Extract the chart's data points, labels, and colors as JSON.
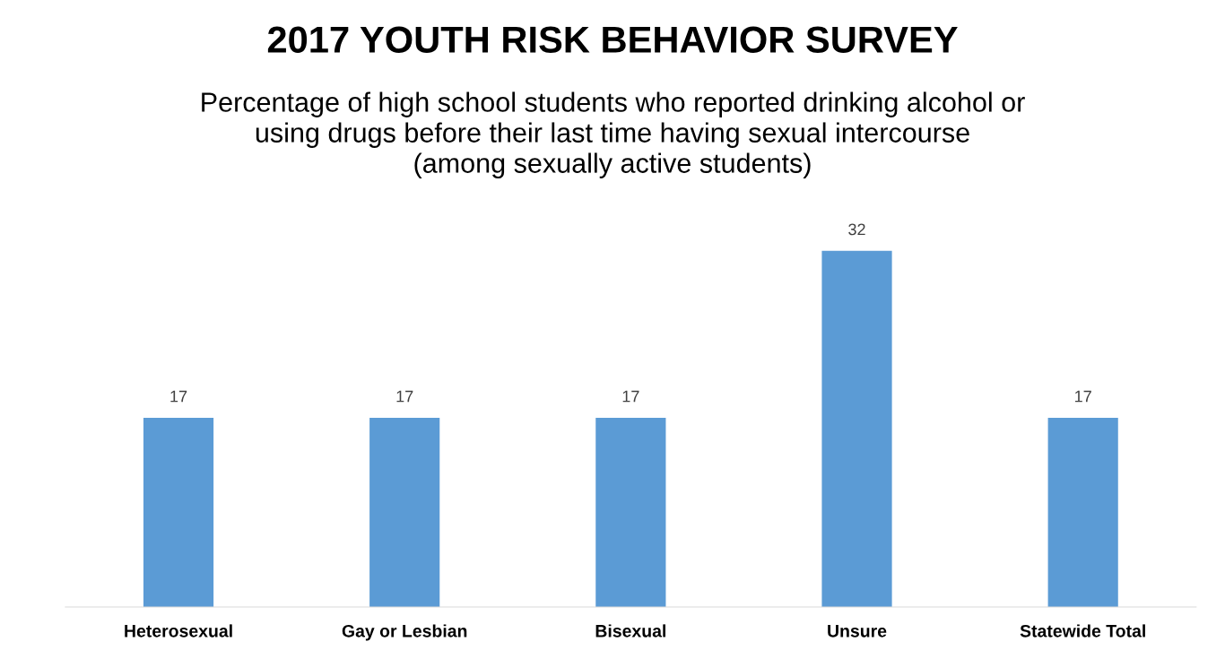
{
  "chart_data": {
    "type": "bar",
    "title": "2017 YOUTH RISK BEHAVIOR SURVEY",
    "subtitle": "Percentage of high school students who reported drinking alcohol or\nusing drugs before their last time having sexual intercourse\n(among sexually active students)",
    "categories": [
      "Heterosexual",
      "Gay or Lesbian",
      "Bisexual",
      "Unsure",
      "Statewide Total"
    ],
    "values": [
      17,
      17,
      17,
      32,
      17
    ],
    "color": "#5b9bd5",
    "data_labels": true,
    "tick_labels": "x",
    "grid": false,
    "legend": false
  }
}
